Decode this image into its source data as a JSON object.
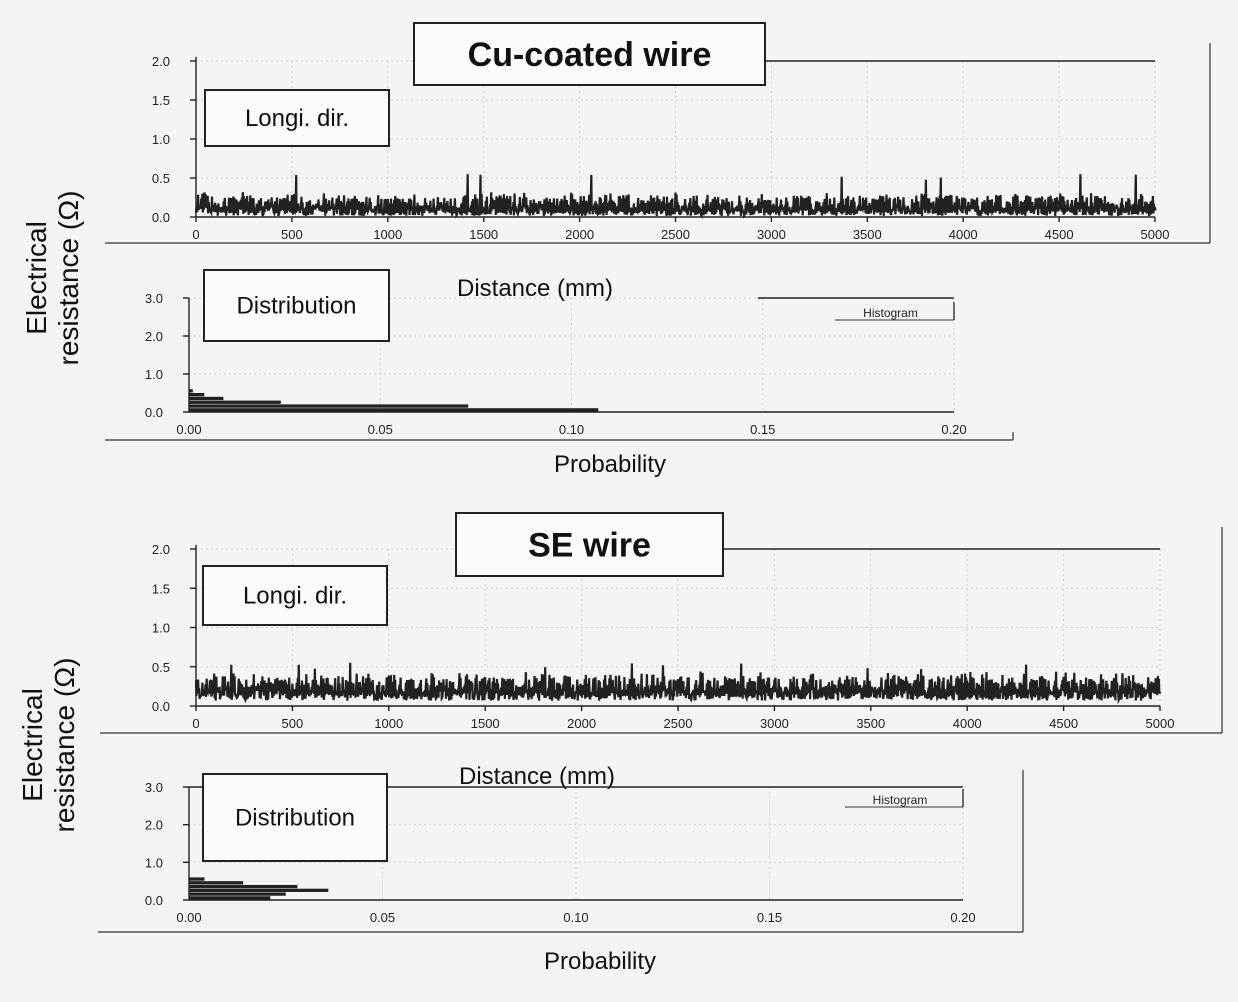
{
  "chart_data": [
    {
      "type": "line",
      "title": "Cu-coated wire",
      "label_box": "Longi. dir.",
      "xlabel": "Distance  (mm)",
      "ylabel": "Electrical resistance (Ω)",
      "x_ticks": [
        "0",
        "500",
        "1000",
        "1500",
        "2000",
        "2500",
        "3000",
        "3500",
        "4000",
        "4500",
        "5000"
      ],
      "y_ticks": [
        "0.0",
        "0.5",
        "1.0",
        "1.5",
        "2.0"
      ],
      "xlim": [
        0,
        5000
      ],
      "ylim": [
        0,
        2.0
      ],
      "grid": true,
      "trace": {
        "mean": 0.17,
        "amp": 0.13,
        "max": 0.55,
        "color": "#222222"
      }
    },
    {
      "type": "bar",
      "label_box": "Distribution",
      "xlabel": "Probability",
      "x_ticks": [
        "0.00",
        "0.05",
        "0.10",
        "0.15",
        "0.20"
      ],
      "y_ticks": [
        "0.0",
        "1.0",
        "2.0",
        "3.0"
      ],
      "xlim": [
        0,
        0.2
      ],
      "ylim": [
        0,
        3.0
      ],
      "orientation": "horizontal",
      "legend": "Histogram",
      "legend_position": "top-right",
      "bins_y": [
        0.05,
        0.15,
        0.25,
        0.35,
        0.45,
        0.55
      ],
      "probability": [
        0.107,
        0.073,
        0.024,
        0.009,
        0.004,
        0.001
      ]
    },
    {
      "type": "line",
      "title": "SE wire",
      "label_box": "Longi. dir.",
      "xlabel": "Distance  (mm)",
      "ylabel": "Electrical resistance (Ω)",
      "x_ticks": [
        "0",
        "500",
        "1000",
        "1500",
        "2000",
        "2500",
        "3000",
        "3500",
        "4000",
        "4500",
        "5000"
      ],
      "y_ticks": [
        "0.0",
        "0.5",
        "1.0",
        "1.5",
        "2.0"
      ],
      "xlim": [
        0,
        5000
      ],
      "ylim": [
        0,
        2.0
      ],
      "grid": true,
      "trace": {
        "mean": 0.26,
        "amp": 0.16,
        "max": 0.55,
        "color": "#222222"
      }
    },
    {
      "type": "bar",
      "label_box": "Distribution",
      "xlabel": "Probability",
      "x_ticks": [
        "0.00",
        "0.05",
        "0.10",
        "0.15",
        "0.20"
      ],
      "y_ticks": [
        "0.0",
        "1.0",
        "2.0",
        "3.0"
      ],
      "xlim": [
        0,
        0.2
      ],
      "ylim": [
        0,
        3.0
      ],
      "orientation": "horizontal",
      "legend": "Histogram",
      "legend_position": "top-right",
      "bins_y": [
        0.05,
        0.15,
        0.25,
        0.35,
        0.45,
        0.55
      ],
      "probability": [
        0.021,
        0.025,
        0.036,
        0.028,
        0.014,
        0.004
      ]
    }
  ]
}
